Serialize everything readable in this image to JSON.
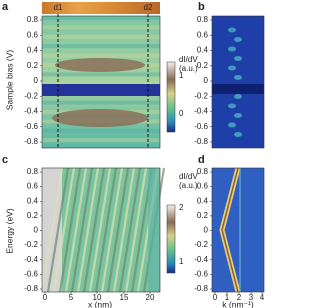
{
  "panels": [
    {
      "label": "a",
      "y_axis_label": "Sample bias (V)",
      "yticks": [
        "0.8",
        "0.6",
        "0.4",
        "0.2",
        "0",
        "-0.2",
        "-0.4",
        "-0.6",
        "-0.8"
      ],
      "markers": [
        "d1",
        "d2"
      ],
      "colorbar": {
        "title_lines": [
          "dI/dV",
          "(a.u.)"
        ],
        "ticks": [
          "1",
          "0"
        ]
      }
    },
    {
      "label": "b",
      "yticks": [
        "0.8",
        "0.6",
        "0.4",
        "0.2",
        "0",
        "-0.2",
        "-0.4",
        "-0.6",
        "-0.8"
      ]
    },
    {
      "label": "c",
      "y_axis_label": "Energy (eV)",
      "x_axis_label": "x (nm)",
      "yticks": [
        "0.8",
        "0.6",
        "0.4",
        "0.2",
        "0",
        "-0.2",
        "-0.4",
        "-0.6",
        "-0.8"
      ],
      "xticks": [
        "0",
        "5",
        "10",
        "15",
        "20"
      ],
      "colorbar": {
        "title_lines": [
          "dI/dV",
          "(a.u.)"
        ],
        "ticks": [
          "2",
          "1"
        ]
      }
    },
    {
      "label": "d",
      "x_axis_label": "k (nm⁻¹)",
      "yticks": [
        "0.8",
        "0.6",
        "0.4",
        "0.2",
        "0",
        "-0.2",
        "-0.4",
        "-0.6",
        "-0.8"
      ],
      "xticks": [
        "0",
        "1",
        "2",
        "3",
        "4"
      ]
    }
  ]
}
